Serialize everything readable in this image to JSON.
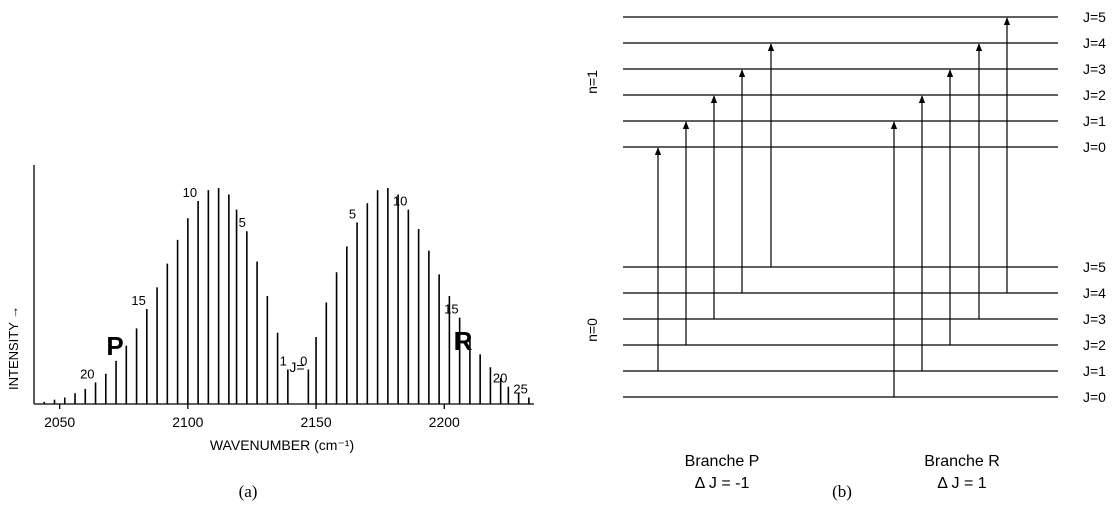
{
  "panel_a": {
    "caption": "(a)",
    "ylabel": "INTENSITY →",
    "xlabel": "WAVENUMBER (cm⁻¹)",
    "x_ticks": [
      "2050",
      "2100",
      "2150",
      "2200"
    ],
    "branch_p": "P",
    "branch_r": "R",
    "j_label": "J=",
    "line_labels": [
      "20",
      "15",
      "10",
      "5",
      "1",
      "0",
      "5",
      "10",
      "15",
      "20",
      "25"
    ]
  },
  "panel_b": {
    "caption": "(b)",
    "upper_state": "n=1",
    "lower_state": "n=0",
    "upper_levels": [
      "J=5",
      "J=4",
      "J=3",
      "J=2",
      "J=1",
      "J=0"
    ],
    "lower_levels": [
      "J=5",
      "J=4",
      "J=3",
      "J=2",
      "J=1",
      "J=0"
    ],
    "branch_p_name": "Branche P",
    "branch_p_rule": "Δ J = -1",
    "branch_r_name": "Branche R",
    "branch_r_rule": "Δ J = 1"
  },
  "chart_data": {
    "type": "bar",
    "xlabel": "WAVENUMBER (cm⁻¹)",
    "ylabel": "INTENSITY →",
    "xlim": [
      2040,
      2235
    ],
    "ylim": [
      0,
      1.0
    ],
    "series": [
      {
        "name": "P",
        "x": [
          2139,
          2135,
          2131,
          2127,
          2123,
          2119,
          2116,
          2112,
          2108,
          2104,
          2100,
          2096,
          2092,
          2088,
          2084,
          2080,
          2076,
          2072,
          2068,
          2064,
          2060,
          2056,
          2052,
          2048,
          2044
        ],
        "labels": [
          "1",
          "",
          "",
          "",
          "5",
          "",
          "",
          "",
          "",
          "10",
          "",
          "",
          "",
          "",
          "15",
          "",
          "",
          "",
          "",
          "20",
          "",
          "",
          "",
          "",
          ""
        ],
        "values": [
          0.16,
          0.33,
          0.5,
          0.66,
          0.8,
          0.9,
          0.97,
          1.0,
          0.99,
          0.94,
          0.86,
          0.76,
          0.65,
          0.54,
          0.44,
          0.35,
          0.27,
          0.2,
          0.14,
          0.1,
          0.07,
          0.05,
          0.03,
          0.02,
          0.01
        ]
      },
      {
        "name": "R",
        "x": [
          2147,
          2150,
          2154,
          2158,
          2162,
          2166,
          2170,
          2174,
          2178,
          2182,
          2186,
          2190,
          2194,
          2198,
          2202,
          2206,
          2210,
          2214,
          2218,
          2222,
          2225,
          2229,
          2233
        ],
        "labels": [
          "0",
          "",
          "",
          "",
          "",
          "5",
          "",
          "",
          "",
          "",
          "10",
          "",
          "",
          "",
          "",
          "15",
          "",
          "",
          "",
          "",
          "20",
          "",
          "25"
        ],
        "values": [
          0.16,
          0.31,
          0.47,
          0.61,
          0.73,
          0.84,
          0.93,
          0.99,
          1.0,
          0.97,
          0.9,
          0.81,
          0.71,
          0.6,
          0.5,
          0.4,
          0.31,
          0.23,
          0.17,
          0.12,
          0.08,
          0.05,
          0.03
        ]
      }
    ]
  }
}
